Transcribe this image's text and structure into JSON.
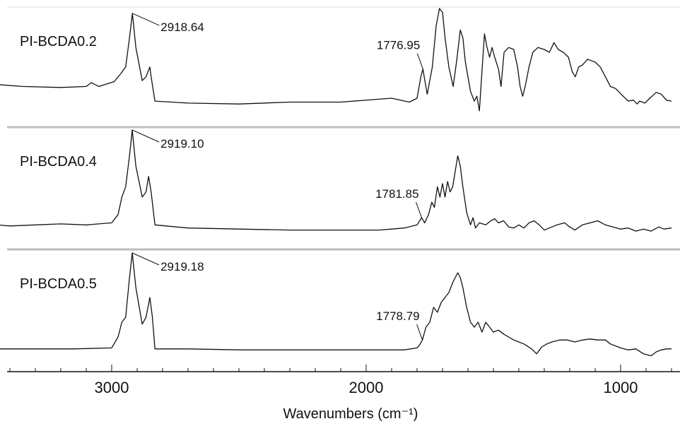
{
  "chart_data": {
    "type": "line",
    "xlabel": "Wavenumbers (cm⁻¹)",
    "xlim": [
      3450,
      800
    ],
    "x_reversed": true,
    "ticks": [
      {
        "value": 3000,
        "label": "3000"
      },
      {
        "value": 2000,
        "label": "2000"
      },
      {
        "value": 1000,
        "label": "1000"
      }
    ],
    "grid": false,
    "stacked_panels": true,
    "line_color": "#111111",
    "series": [
      {
        "name": "PI-BCDA0.2",
        "annotations": [
          {
            "x": 2918.64,
            "text": "2918.64"
          },
          {
            "x": 1776.95,
            "text": "1776.95"
          }
        ],
        "points": [
          [
            3450,
            0.22
          ],
          [
            3350,
            0.2
          ],
          [
            3200,
            0.19
          ],
          [
            3100,
            0.2
          ],
          [
            3080,
            0.24
          ],
          [
            3050,
            0.2
          ],
          [
            2990,
            0.25
          ],
          [
            2965,
            0.33
          ],
          [
            2945,
            0.4
          ],
          [
            2930,
            0.7
          ],
          [
            2918.64,
            0.95
          ],
          [
            2905,
            0.6
          ],
          [
            2880,
            0.26
          ],
          [
            2865,
            0.3
          ],
          [
            2850,
            0.4
          ],
          [
            2845,
            0.3
          ],
          [
            2830,
            0.05
          ],
          [
            2700,
            0.03
          ],
          [
            2500,
            0.02
          ],
          [
            2300,
            0.04
          ],
          [
            2100,
            0.04
          ],
          [
            1900,
            0.08
          ],
          [
            1830,
            0.04
          ],
          [
            1800,
            0.08
          ],
          [
            1785,
            0.3
          ],
          [
            1776.95,
            0.38
          ],
          [
            1768,
            0.24
          ],
          [
            1760,
            0.12
          ],
          [
            1740,
            0.4
          ],
          [
            1725,
            0.82
          ],
          [
            1712,
            1.0
          ],
          [
            1700,
            0.96
          ],
          [
            1690,
            0.7
          ],
          [
            1675,
            0.4
          ],
          [
            1658,
            0.2
          ],
          [
            1645,
            0.45
          ],
          [
            1630,
            0.78
          ],
          [
            1620,
            0.7
          ],
          [
            1610,
            0.45
          ],
          [
            1590,
            0.15
          ],
          [
            1575,
            0.05
          ],
          [
            1565,
            0.1
          ],
          [
            1555,
            -0.05
          ],
          [
            1545,
            0.35
          ],
          [
            1535,
            0.74
          ],
          [
            1525,
            0.6
          ],
          [
            1515,
            0.5
          ],
          [
            1505,
            0.6
          ],
          [
            1495,
            0.5
          ],
          [
            1480,
            0.38
          ],
          [
            1470,
            0.2
          ],
          [
            1458,
            0.55
          ],
          [
            1440,
            0.6
          ],
          [
            1420,
            0.58
          ],
          [
            1405,
            0.4
          ],
          [
            1395,
            0.2
          ],
          [
            1385,
            0.1
          ],
          [
            1375,
            0.2
          ],
          [
            1360,
            0.4
          ],
          [
            1345,
            0.55
          ],
          [
            1325,
            0.6
          ],
          [
            1300,
            0.58
          ],
          [
            1280,
            0.55
          ],
          [
            1262,
            0.65
          ],
          [
            1245,
            0.58
          ],
          [
            1225,
            0.55
          ],
          [
            1205,
            0.5
          ],
          [
            1190,
            0.35
          ],
          [
            1178,
            0.3
          ],
          [
            1165,
            0.4
          ],
          [
            1150,
            0.42
          ],
          [
            1130,
            0.48
          ],
          [
            1100,
            0.45
          ],
          [
            1080,
            0.4
          ],
          [
            1060,
            0.3
          ],
          [
            1040,
            0.2
          ],
          [
            1020,
            0.18
          ],
          [
            990,
            0.1
          ],
          [
            970,
            0.05
          ],
          [
            950,
            0.06
          ],
          [
            935,
            0.02
          ],
          [
            925,
            0.05
          ],
          [
            905,
            0.03
          ],
          [
            885,
            0.08
          ],
          [
            860,
            0.14
          ],
          [
            840,
            0.12
          ],
          [
            820,
            0.06
          ],
          [
            800,
            0.05
          ]
        ]
      },
      {
        "name": "PI-BCDA0.4",
        "annotations": [
          {
            "x": 2919.1,
            "text": "2919.10"
          },
          {
            "x": 1781.85,
            "text": "1781.85"
          }
        ],
        "points": [
          [
            3450,
            0.08
          ],
          [
            3400,
            0.07
          ],
          [
            3300,
            0.08
          ],
          [
            3200,
            0.09
          ],
          [
            3100,
            0.08
          ],
          [
            3000,
            0.1
          ],
          [
            2975,
            0.18
          ],
          [
            2960,
            0.35
          ],
          [
            2945,
            0.45
          ],
          [
            2930,
            0.75
          ],
          [
            2919.1,
            1.0
          ],
          [
            2905,
            0.65
          ],
          [
            2880,
            0.35
          ],
          [
            2865,
            0.4
          ],
          [
            2855,
            0.55
          ],
          [
            2845,
            0.4
          ],
          [
            2830,
            0.08
          ],
          [
            2700,
            0.05
          ],
          [
            2500,
            0.04
          ],
          [
            2300,
            0.03
          ],
          [
            2100,
            0.03
          ],
          [
            1950,
            0.03
          ],
          [
            1900,
            0.04
          ],
          [
            1850,
            0.05
          ],
          [
            1800,
            0.08
          ],
          [
            1781.85,
            0.15
          ],
          [
            1770,
            0.1
          ],
          [
            1755,
            0.18
          ],
          [
            1742,
            0.3
          ],
          [
            1732,
            0.25
          ],
          [
            1720,
            0.45
          ],
          [
            1710,
            0.35
          ],
          [
            1700,
            0.48
          ],
          [
            1690,
            0.35
          ],
          [
            1680,
            0.5
          ],
          [
            1670,
            0.4
          ],
          [
            1660,
            0.45
          ],
          [
            1650,
            0.6
          ],
          [
            1640,
            0.75
          ],
          [
            1630,
            0.65
          ],
          [
            1620,
            0.45
          ],
          [
            1605,
            0.2
          ],
          [
            1590,
            0.08
          ],
          [
            1580,
            0.15
          ],
          [
            1570,
            0.05
          ],
          [
            1555,
            0.1
          ],
          [
            1530,
            0.08
          ],
          [
            1510,
            0.12
          ],
          [
            1495,
            0.14
          ],
          [
            1480,
            0.1
          ],
          [
            1460,
            0.12
          ],
          [
            1440,
            0.06
          ],
          [
            1420,
            0.05
          ],
          [
            1400,
            0.08
          ],
          [
            1380,
            0.05
          ],
          [
            1360,
            0.1
          ],
          [
            1340,
            0.12
          ],
          [
            1320,
            0.08
          ],
          [
            1300,
            0.03
          ],
          [
            1280,
            0.05
          ],
          [
            1250,
            0.08
          ],
          [
            1220,
            0.1
          ],
          [
            1200,
            0.06
          ],
          [
            1180,
            0.03
          ],
          [
            1150,
            0.08
          ],
          [
            1120,
            0.1
          ],
          [
            1090,
            0.12
          ],
          [
            1060,
            0.08
          ],
          [
            1030,
            0.06
          ],
          [
            1000,
            0.04
          ],
          [
            970,
            0.05
          ],
          [
            940,
            0.02
          ],
          [
            910,
            0.04
          ],
          [
            880,
            0.02
          ],
          [
            850,
            0.06
          ],
          [
            830,
            0.04
          ],
          [
            800,
            0.05
          ]
        ]
      },
      {
        "name": "PI-BCDA0.5",
        "annotations": [
          {
            "x": 2919.18,
            "text": "2919.18"
          },
          {
            "x": 1778.79,
            "text": "1778.79"
          }
        ],
        "points": [
          [
            3450,
            0.03
          ],
          [
            3300,
            0.03
          ],
          [
            3150,
            0.03
          ],
          [
            3000,
            0.04
          ],
          [
            2975,
            0.15
          ],
          [
            2960,
            0.3
          ],
          [
            2945,
            0.35
          ],
          [
            2930,
            0.75
          ],
          [
            2919.18,
            1.0
          ],
          [
            2905,
            0.65
          ],
          [
            2880,
            0.28
          ],
          [
            2865,
            0.35
          ],
          [
            2850,
            0.55
          ],
          [
            2840,
            0.35
          ],
          [
            2830,
            0.03
          ],
          [
            2700,
            0.03
          ],
          [
            2500,
            0.02
          ],
          [
            2300,
            0.02
          ],
          [
            2100,
            0.02
          ],
          [
            1950,
            0.02
          ],
          [
            1850,
            0.02
          ],
          [
            1800,
            0.04
          ],
          [
            1790,
            0.07
          ],
          [
            1778.79,
            0.12
          ],
          [
            1765,
            0.25
          ],
          [
            1750,
            0.3
          ],
          [
            1735,
            0.45
          ],
          [
            1720,
            0.4
          ],
          [
            1705,
            0.5
          ],
          [
            1690,
            0.55
          ],
          [
            1675,
            0.6
          ],
          [
            1660,
            0.7
          ],
          [
            1640,
            0.8
          ],
          [
            1630,
            0.75
          ],
          [
            1620,
            0.65
          ],
          [
            1605,
            0.45
          ],
          [
            1590,
            0.3
          ],
          [
            1575,
            0.25
          ],
          [
            1560,
            0.3
          ],
          [
            1545,
            0.2
          ],
          [
            1530,
            0.3
          ],
          [
            1515,
            0.25
          ],
          [
            1500,
            0.2
          ],
          [
            1480,
            0.22
          ],
          [
            1460,
            0.18
          ],
          [
            1440,
            0.15
          ],
          [
            1420,
            0.12
          ],
          [
            1400,
            0.1
          ],
          [
            1380,
            0.08
          ],
          [
            1350,
            0.03
          ],
          [
            1330,
            -0.02
          ],
          [
            1310,
            0.05
          ],
          [
            1290,
            0.08
          ],
          [
            1270,
            0.1
          ],
          [
            1240,
            0.12
          ],
          [
            1210,
            0.12
          ],
          [
            1180,
            0.1
          ],
          [
            1150,
            0.12
          ],
          [
            1120,
            0.13
          ],
          [
            1090,
            0.12
          ],
          [
            1060,
            0.12
          ],
          [
            1040,
            0.08
          ],
          [
            1000,
            0.04
          ],
          [
            970,
            0.02
          ],
          [
            940,
            0.03
          ],
          [
            910,
            -0.02
          ],
          [
            880,
            -0.04
          ],
          [
            860,
            0.0
          ],
          [
            840,
            0.02
          ],
          [
            820,
            0.03
          ],
          [
            800,
            0.03
          ]
        ]
      }
    ]
  }
}
